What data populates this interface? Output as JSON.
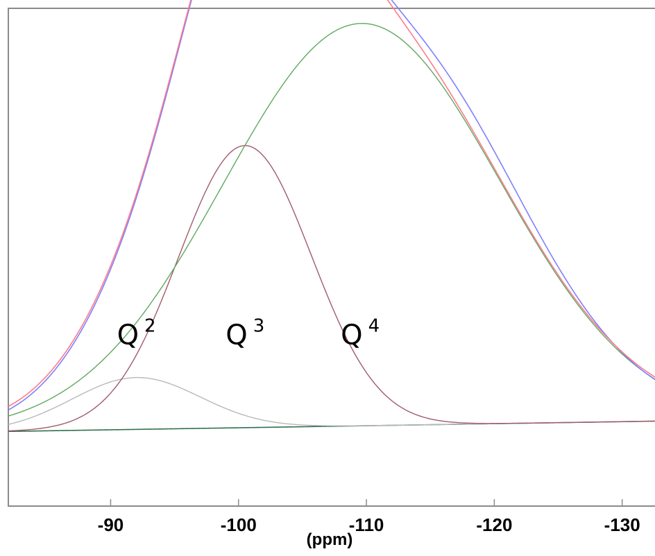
{
  "chart_data": {
    "type": "line",
    "title": "",
    "xlabel": "(ppm)",
    "ylabel": "",
    "xlim": [
      -82,
      -133
    ],
    "ylim": [
      -0.18,
      1.02
    ],
    "x_ticks": [
      -90,
      -100,
      -110,
      -120,
      -130
    ],
    "x_tick_labels": [
      "-90",
      "-100",
      "-110",
      "-120",
      "-130"
    ],
    "grid": false,
    "baseline": {
      "x": [
        -82,
        -133
      ],
      "y": [
        0.0,
        0.025
      ]
    },
    "components": [
      {
        "label": "Q",
        "superscript": "2",
        "center": -92,
        "height": 0.125,
        "width": 5.0,
        "color": "#b8b8b8"
      },
      {
        "label": "Q",
        "superscript": "3",
        "center": -100.5,
        "height": 0.68,
        "width": 5.2,
        "color": "#a05a6a"
      },
      {
        "label": "Q",
        "superscript": "4",
        "center": -109.6,
        "height": 0.97,
        "width": 10.8,
        "color": "#5fa85f"
      }
    ],
    "series_colors": {
      "experimental": "#7f7fff",
      "fit_sum": "#ff7a8a"
    },
    "peak_labels": [
      {
        "text": "Q",
        "sup": "2",
        "x": -92
      },
      {
        "text": "Q",
        "sup": "3",
        "x": -100.5
      },
      {
        "text": "Q",
        "sup": "4",
        "x": -109.5
      }
    ],
    "peak_label_y": 0.21
  }
}
